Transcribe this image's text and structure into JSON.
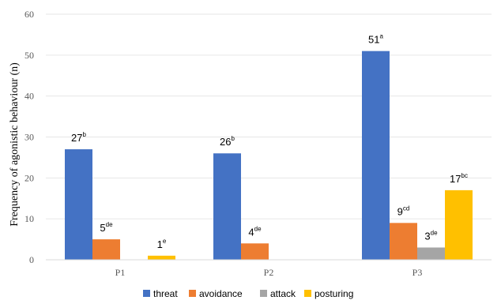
{
  "chart_data": {
    "type": "bar",
    "ylabel": "Frequency of agonistic behaviour (n)",
    "xlabel": "",
    "ylim": [
      0,
      60
    ],
    "yticks": [
      0,
      10,
      20,
      30,
      40,
      50,
      60
    ],
    "grid": true,
    "legend_position": "bottom",
    "categories": [
      "P1",
      "P2",
      "P3"
    ],
    "series": [
      {
        "name": "threat",
        "color": "#4472C4",
        "values": [
          27,
          26,
          51
        ],
        "labels": [
          "27",
          "26",
          "51"
        ],
        "sup": [
          "b",
          "b",
          "a"
        ]
      },
      {
        "name": "avoidance",
        "color": "#ED7D31",
        "values": [
          5,
          4,
          9
        ],
        "labels": [
          "5",
          "4",
          "9"
        ],
        "sup": [
          "de",
          "de",
          "cd"
        ]
      },
      {
        "name": "attack",
        "color": "#A5A5A5",
        "values": [
          0,
          0,
          3
        ],
        "labels": [
          "",
          "",
          "3"
        ],
        "sup": [
          "",
          "",
          "de"
        ]
      },
      {
        "name": "posturing",
        "color": "#FFC000",
        "values": [
          1,
          0,
          17
        ],
        "labels": [
          "1",
          "",
          "17"
        ],
        "sup": [
          "e",
          "",
          "bc"
        ]
      }
    ]
  }
}
